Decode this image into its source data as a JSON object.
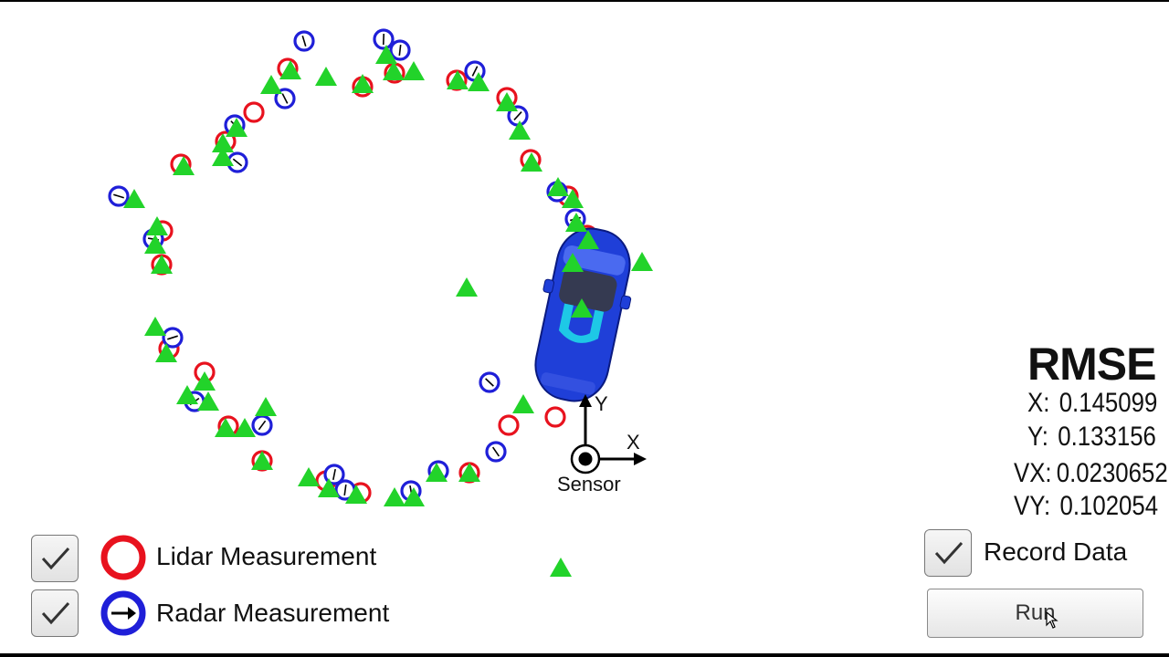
{
  "sensor": {
    "label": "Sensor",
    "axis_x": "X",
    "axis_y": "Y"
  },
  "car": {
    "brand_text": "UDACITY",
    "color": "#1f3fd8"
  },
  "rmse": {
    "title": "RMSE",
    "rows": [
      {
        "key": "X:",
        "value": "0.145099"
      },
      {
        "key": "Y:",
        "value": "0.133156"
      },
      {
        "key": "VX:",
        "value": "0.0230652"
      },
      {
        "key": "VY:",
        "value": "0.102054"
      }
    ]
  },
  "legend": {
    "lidar": {
      "label": "Lidar Measurement",
      "checked": true,
      "color": "#e8121e"
    },
    "radar": {
      "label": "Radar Measurement",
      "checked": true,
      "color": "#1f1fd8"
    }
  },
  "record": {
    "label": "Record Data",
    "checked": true
  },
  "run_button": {
    "label": "Run"
  },
  "colors": {
    "estimate_marker": "#22d32a"
  }
}
